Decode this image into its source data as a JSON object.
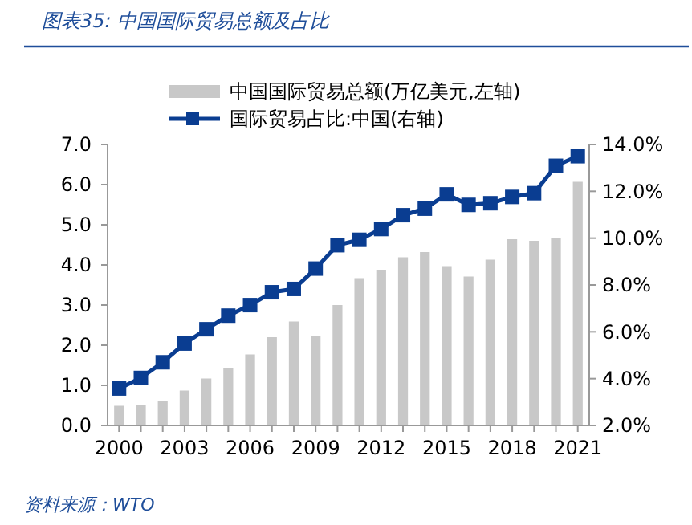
{
  "chart_data": {
    "type": "bar",
    "title": "图表35: 中国国际贸易总额及占比",
    "categories": [
      "2000",
      null,
      null,
      "2003",
      null,
      null,
      "2006",
      null,
      null,
      "2009",
      null,
      null,
      "2012",
      null,
      null,
      "2015",
      null,
      null,
      "2018",
      null,
      null,
      "2021"
    ],
    "series": [
      {
        "name": "中国国际贸易总额(万亿美元,左轴)",
        "color": "#c8c8c8",
        "values": [
          0.49,
          0.51,
          0.62,
          0.87,
          1.17,
          1.44,
          1.77,
          2.2,
          2.59,
          2.23,
          3.0,
          3.67,
          3.88,
          4.19,
          4.32,
          3.97,
          3.71,
          4.13,
          4.64,
          4.6,
          4.67,
          6.07
        ]
      },
      {
        "name": "国际贸易占比:中国(右轴)",
        "type": "line",
        "axis": "y2",
        "color": "#0a3d91",
        "marker": "square",
        "values": [
          3.58,
          4.03,
          4.7,
          5.5,
          6.11,
          6.69,
          7.14,
          7.69,
          7.83,
          8.7,
          9.7,
          9.93,
          10.39,
          10.98,
          11.26,
          11.87,
          11.42,
          11.49,
          11.76,
          11.92,
          13.09,
          13.5
        ]
      }
    ],
    "ylim": [
      0,
      7
    ],
    "yticks": [
      {
        "value": 0,
        "label": "0.0"
      },
      {
        "value": 1,
        "label": "1.0"
      },
      {
        "value": 2,
        "label": "2.0"
      },
      {
        "value": 3,
        "label": "3.0"
      },
      {
        "value": 4,
        "label": "4.0"
      },
      {
        "value": 5,
        "label": "5.0"
      },
      {
        "value": 6,
        "label": "6.0"
      },
      {
        "value": 7,
        "label": "7.0"
      }
    ],
    "y2lim": [
      2,
      14
    ],
    "y2ticks": [
      {
        "value": 2,
        "label": "2.0%"
      },
      {
        "value": 4,
        "label": "4.0%"
      },
      {
        "value": 6,
        "label": "6.0%"
      },
      {
        "value": 8,
        "label": "8.0%"
      },
      {
        "value": 10,
        "label": "10.0%"
      },
      {
        "value": 12,
        "label": "12.0%"
      },
      {
        "value": 14,
        "label": "14.0%"
      }
    ],
    "legend": "top",
    "annotations": [
      "资料来源：WTO"
    ]
  }
}
